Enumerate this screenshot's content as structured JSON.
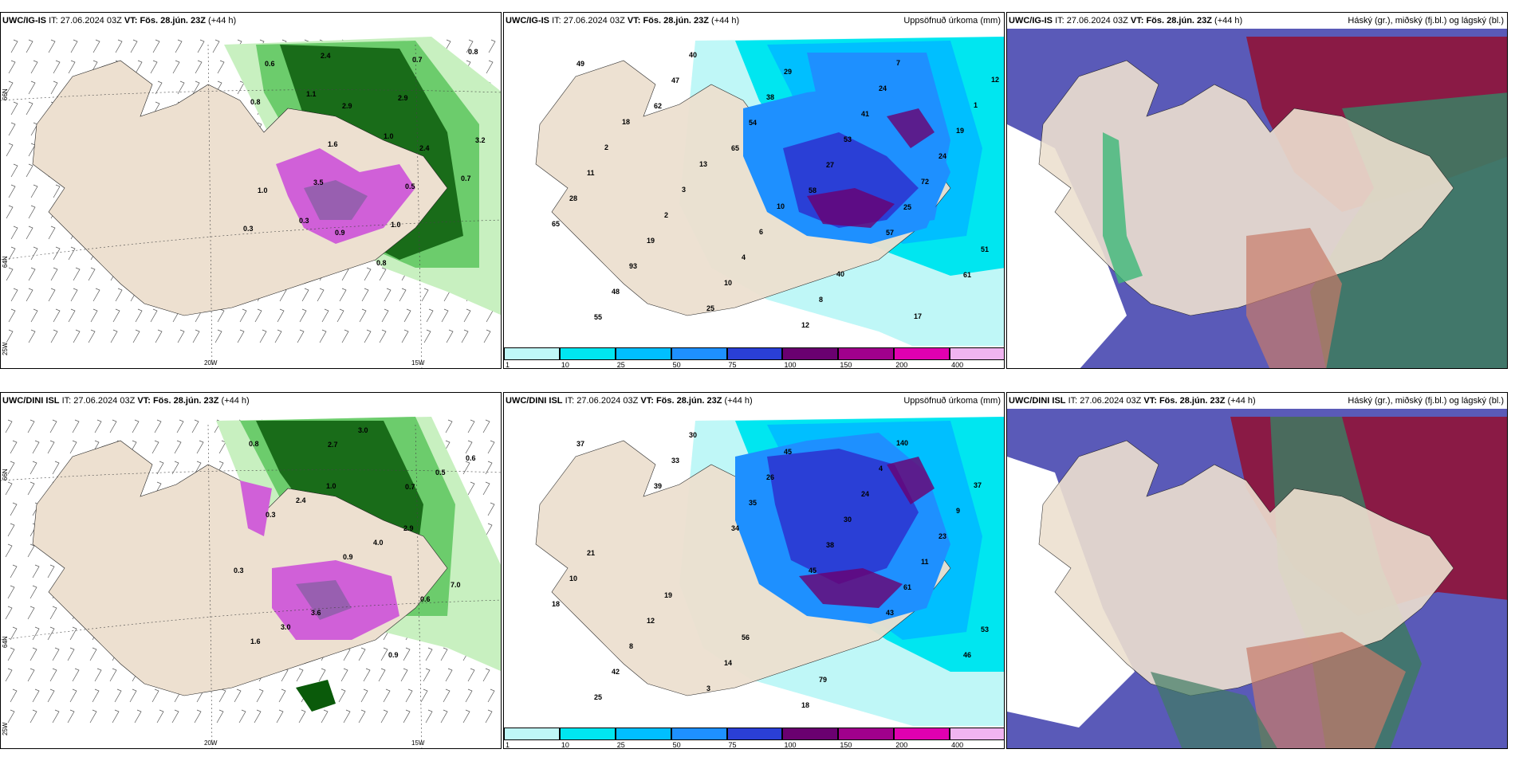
{
  "rows": [
    {
      "model": "UWC/IG-IS",
      "it": "27.06.2024 03Z",
      "vt": "Fös. 28.jún. 23Z",
      "lead": "(+44 h)"
    },
    {
      "model": "UWC/DINI ISL",
      "it": "27.06.2024 03Z",
      "vt": "Fös. 28.jún. 23Z",
      "lead": "(+44 h)"
    }
  ],
  "labels": {
    "it": "IT:",
    "vt": "VT:"
  },
  "precip_title": "Uppsöfnuð úrkoma (mm)",
  "cloud_title": "Háský (gr.), miðský (fj.bl.) og lágský (bl.)",
  "colorbar": {
    "ticks": [
      "1",
      "10",
      "25",
      "50",
      "75",
      "100",
      "150",
      "200",
      "400"
    ],
    "colors": [
      "#bff7f7",
      "#00e6f0",
      "#00bfff",
      "#1e90ff",
      "#2a3fd6",
      "#6a0070",
      "#a0008c",
      "#e000b0",
      "#f0b4f0"
    ]
  },
  "axes": {
    "lon_20w": "20W",
    "lon_15w": "15W",
    "lat_66n": "66N",
    "lat_64n": "64N",
    "lon_25w": "25W"
  },
  "rate_labels_top": [
    "0.6",
    "2.9",
    "2.4",
    "1.0",
    "0.9",
    "0.7",
    "0.8",
    "1.6",
    "0.5",
    "0.3",
    "2.4",
    "2.9",
    "3.2",
    "3.5",
    "1.0",
    "0.8",
    "1.1",
    "1.0",
    "0.7",
    "0.3",
    "0.8"
  ],
  "rate_labels_bottom": [
    "0.8",
    "1.0",
    "2.9",
    "0.3",
    "3.6",
    "0.9",
    "0.6",
    "2.4",
    "4.0",
    "7.0",
    "3.0",
    "3.0",
    "0.5",
    "0.3",
    "0.9",
    "0.6",
    "1.6",
    "2.7",
    "0.7"
  ],
  "precip_labels_top": [
    "49",
    "62",
    "65",
    "58",
    "57",
    "61",
    "55",
    "47",
    "54",
    "27",
    "25",
    "51",
    "48",
    "40",
    "38",
    "53",
    "72",
    "65",
    "93",
    "25",
    "29",
    "41",
    "24",
    "28",
    "19",
    "10",
    "12",
    "24",
    "19",
    "11",
    "2",
    "4",
    "8",
    "7",
    "1",
    "2",
    "3",
    "6",
    "40",
    "17",
    "12",
    "18",
    "13",
    "10"
  ],
  "precip_labels_bottom": [
    "37",
    "39",
    "34",
    "45",
    "43",
    "46",
    "25",
    "33",
    "35",
    "38",
    "61",
    "53",
    "42",
    "30",
    "26",
    "30",
    "11",
    "18",
    "8",
    "3",
    "45",
    "24",
    "23",
    "10",
    "12",
    "14",
    "18",
    "4",
    "9",
    "21",
    "19",
    "56",
    "79",
    "140",
    "37"
  ],
  "colors": {
    "land": "#ede0d0",
    "rain_light": "#c8f0c0",
    "rain_mid": "#6ccc6c",
    "rain_dark": "#0a5a0a",
    "rain_heavy": "#d060d8",
    "cloud_high": "#8a1a45",
    "cloud_mid": "#6a6ad0",
    "cloud_low": "#3e7a62"
  }
}
